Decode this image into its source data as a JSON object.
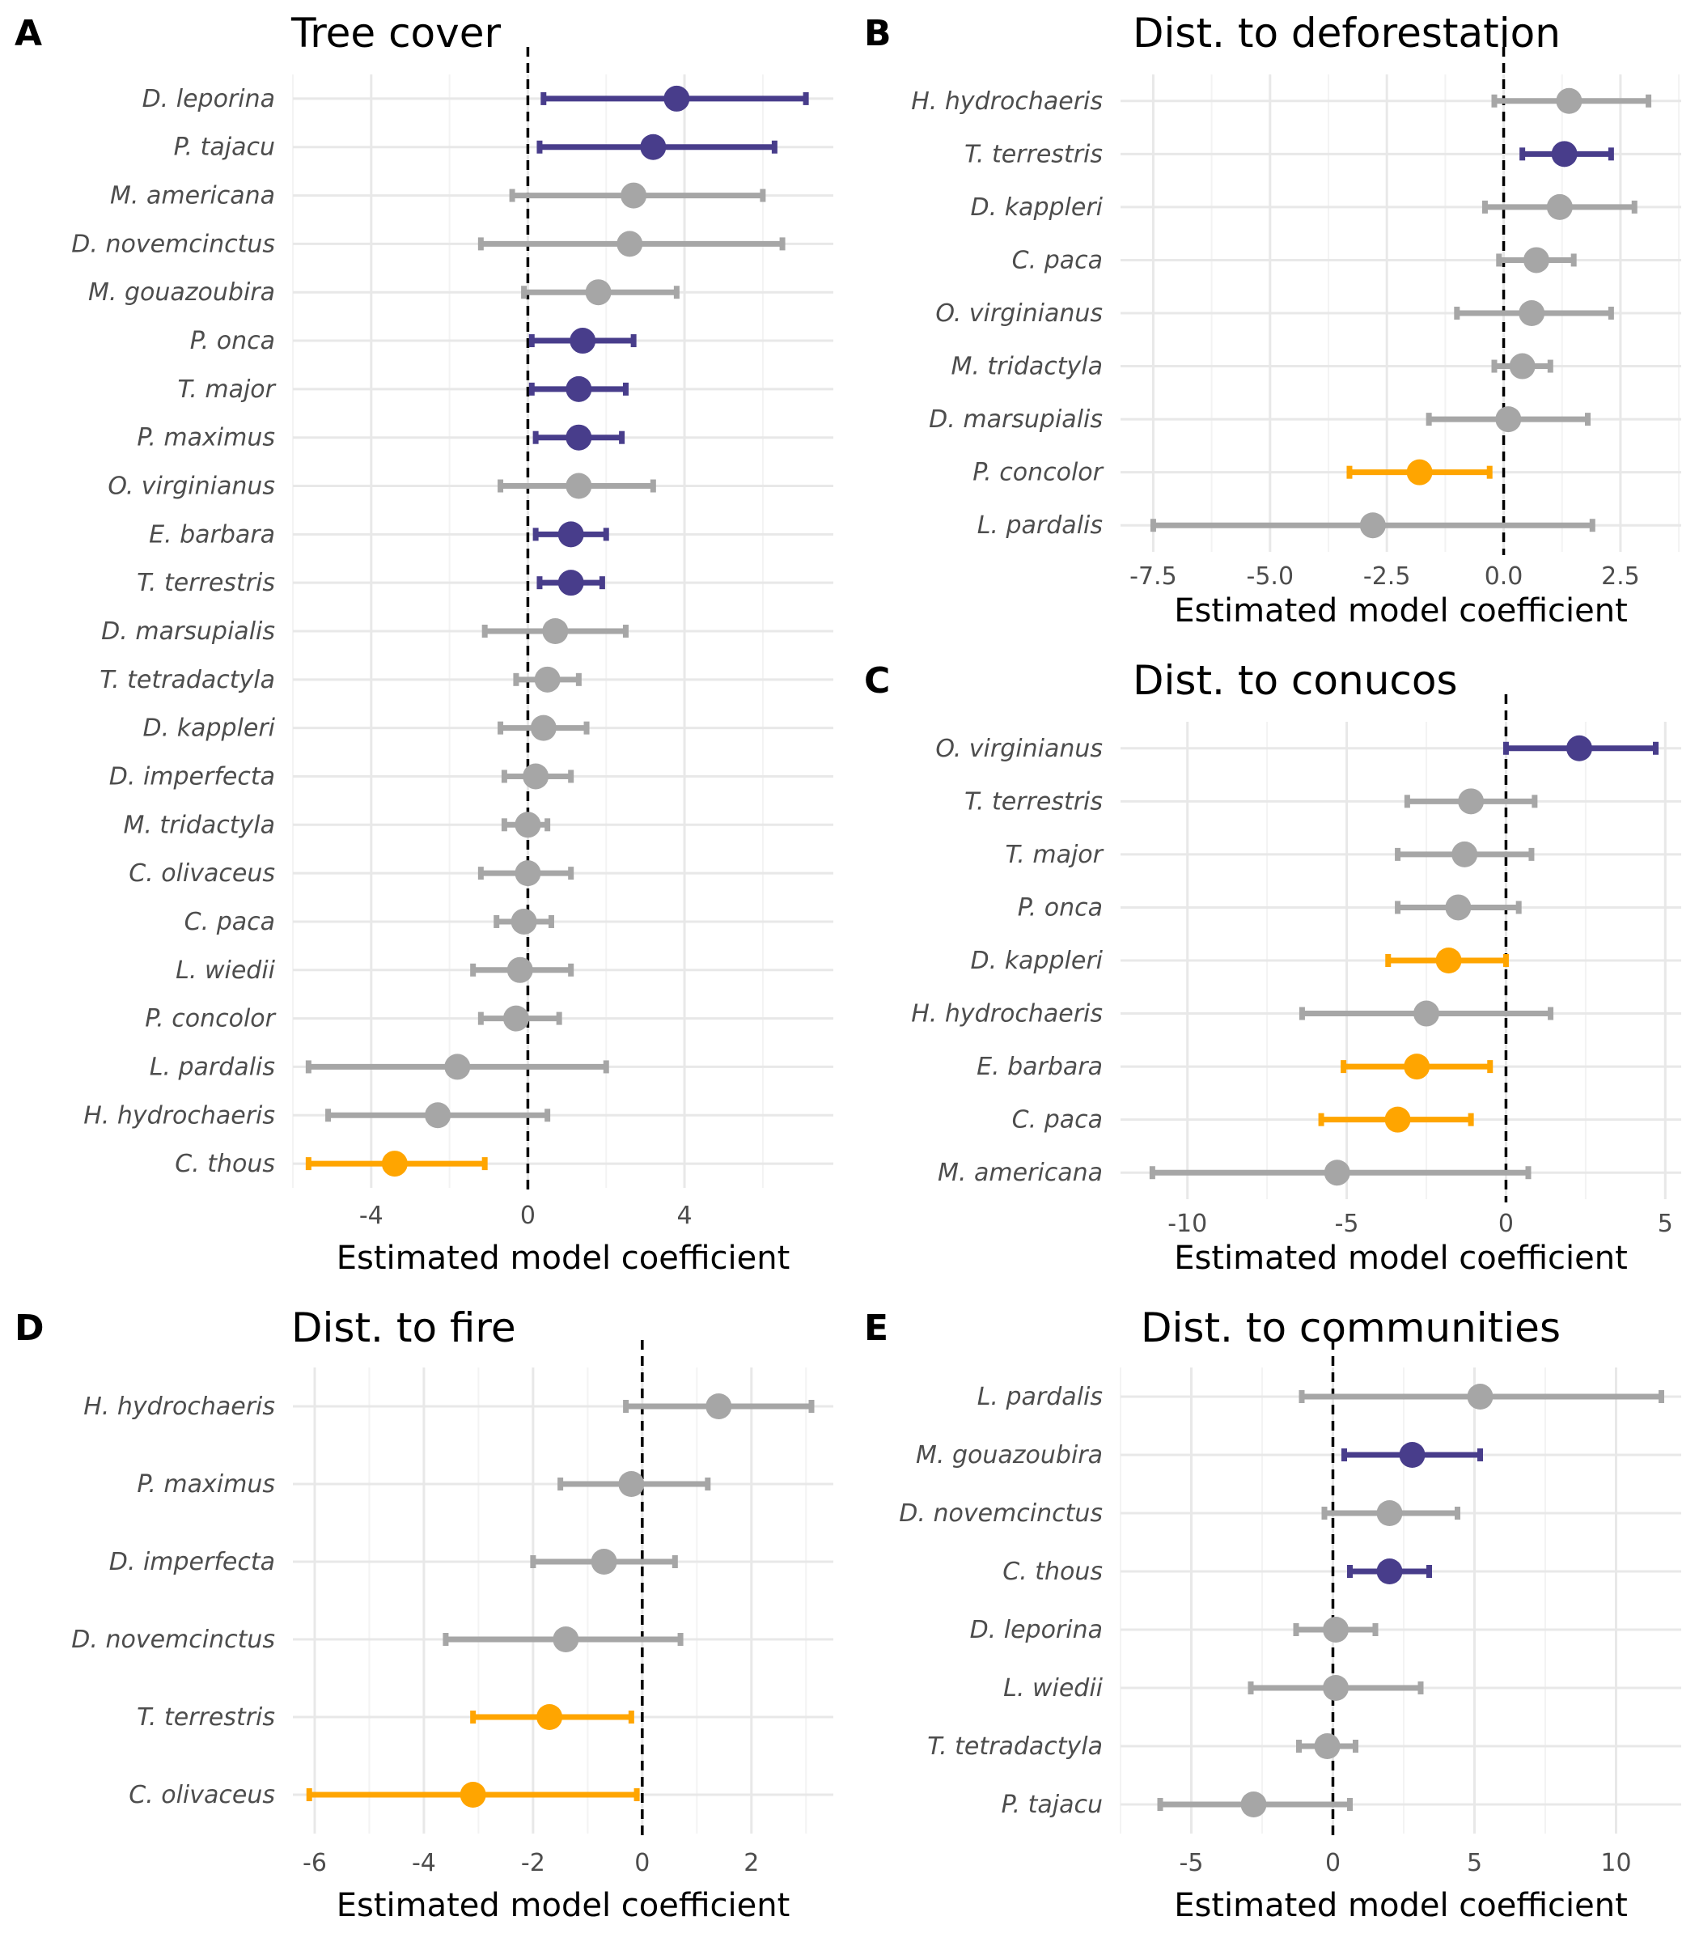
{
  "colors": {
    "positive": "#483D8B",
    "negative": "#FFA500",
    "neutral": "#A6A6A6"
  },
  "chart_data": [
    {
      "type": "scatter",
      "panel": "A",
      "title": "Tree cover",
      "xlabel": "Estimated model coefficient",
      "xlim": [
        -6,
        7.8
      ],
      "xticks": [
        -4,
        0,
        4
      ],
      "categories": [
        "D. leporina",
        "P. tajacu",
        "M. americana",
        "D. novemcinctus",
        "M. gouazoubira",
        "P. onca",
        "T. major",
        "P. maximus",
        "O. virginianus",
        "E. barbara",
        "T. terrestris",
        "D. marsupialis",
        "T. tetradactyla",
        "D. kappleri",
        "D. imperfecta",
        "M. tridactyla",
        "C. olivaceus",
        "C. paca",
        "L. wiedii",
        "P. concolor",
        "L. pardalis",
        "H. hydrochaeris",
        "C. thous"
      ],
      "estimate": [
        3.8,
        3.2,
        2.7,
        2.6,
        1.8,
        1.4,
        1.3,
        1.3,
        1.3,
        1.1,
        1.1,
        0.7,
        0.5,
        0.4,
        0.2,
        0.0,
        0.0,
        -0.1,
        -0.2,
        -0.3,
        -1.8,
        -2.3,
        -3.4
      ],
      "lower": [
        0.4,
        0.3,
        -0.4,
        -1.2,
        -0.1,
        0.1,
        0.1,
        0.2,
        -0.7,
        0.2,
        0.3,
        -1.1,
        -0.3,
        -0.7,
        -0.6,
        -0.6,
        -1.2,
        -0.8,
        -1.4,
        -1.2,
        -5.6,
        -5.1,
        -5.6
      ],
      "upper": [
        7.1,
        6.3,
        6.0,
        6.5,
        3.8,
        2.7,
        2.5,
        2.4,
        3.2,
        2.0,
        1.9,
        2.5,
        1.3,
        1.5,
        1.1,
        0.5,
        1.1,
        0.6,
        1.1,
        0.8,
        2.0,
        0.5,
        -1.1
      ],
      "effect": [
        "pos",
        "pos",
        "ns",
        "ns",
        "ns",
        "pos",
        "pos",
        "pos",
        "ns",
        "pos",
        "pos",
        "ns",
        "ns",
        "ns",
        "ns",
        "ns",
        "ns",
        "ns",
        "ns",
        "ns",
        "ns",
        "ns",
        "neg"
      ]
    },
    {
      "type": "scatter",
      "panel": "B",
      "title": "Dist. to deforestation",
      "xlabel": "Estimated model coefficient",
      "xlim": [
        -8.2,
        3.8
      ],
      "xticks": [
        -7.5,
        -5.0,
        -2.5,
        0.0,
        2.5
      ],
      "xticklabels": [
        "-7.5",
        "-5.0",
        "-2.5",
        "0.0",
        "2.5"
      ],
      "categories": [
        "H. hydrochaeris",
        "T. terrestris",
        "D. kappleri",
        "C. paca",
        "O. virginianus",
        "M. tridactyla",
        "D. marsupialis",
        "P. concolor",
        "L. pardalis"
      ],
      "estimate": [
        1.4,
        1.3,
        1.2,
        0.7,
        0.6,
        0.4,
        0.1,
        -1.8,
        -2.8
      ],
      "lower": [
        -0.2,
        0.4,
        -0.4,
        -0.1,
        -1.0,
        -0.2,
        -1.6,
        -3.3,
        -7.5
      ],
      "upper": [
        3.1,
        2.3,
        2.8,
        1.5,
        2.3,
        1.0,
        1.8,
        -0.3,
        1.9
      ],
      "effect": [
        "ns",
        "pos",
        "ns",
        "ns",
        "ns",
        "ns",
        "ns",
        "neg",
        "ns"
      ]
    },
    {
      "type": "scatter",
      "panel": "C",
      "title": "Dist. to conucos",
      "xlabel": "Estimated model coefficient",
      "xlim": [
        -12.1,
        5.5
      ],
      "xticks": [
        -10,
        -5,
        0,
        5
      ],
      "categories": [
        "O. virginianus",
        "T. terrestris",
        "T. major",
        "P. onca",
        "D. kappleri",
        "H. hydrochaeris",
        "E. barbara",
        "C. paca",
        "M. americana"
      ],
      "estimate": [
        2.3,
        -1.1,
        -1.3,
        -1.5,
        -1.8,
        -2.5,
        -2.8,
        -3.4,
        -5.3
      ],
      "lower": [
        0.0,
        -3.1,
        -3.4,
        -3.4,
        -3.7,
        -6.4,
        -5.1,
        -5.8,
        -11.1
      ],
      "upper": [
        4.7,
        0.9,
        0.8,
        0.4,
        0.0,
        1.4,
        -0.5,
        -1.1,
        0.7
      ],
      "effect": [
        "pos",
        "ns",
        "ns",
        "ns",
        "neg",
        "ns",
        "neg",
        "neg",
        "ns"
      ]
    },
    {
      "type": "scatter",
      "panel": "D",
      "title": "Dist. to fire",
      "xlabel": "Estimated model coefficient",
      "xlim": [
        -6.4,
        3.5
      ],
      "xticks": [
        -6,
        -4,
        -2,
        0,
        2
      ],
      "categories": [
        "H. hydrochaeris",
        "P. maximus",
        "D. imperfecta",
        "D. novemcinctus",
        "T. terrestris",
        "C. olivaceus"
      ],
      "estimate": [
        1.4,
        -0.2,
        -0.7,
        -1.4,
        -1.7,
        -3.1
      ],
      "lower": [
        -0.3,
        -1.5,
        -2.0,
        -3.6,
        -3.1,
        -6.1
      ],
      "upper": [
        3.1,
        1.2,
        0.6,
        0.7,
        -0.2,
        -0.1
      ],
      "effect": [
        "ns",
        "ns",
        "ns",
        "ns",
        "neg",
        "neg"
      ]
    },
    {
      "type": "scatter",
      "panel": "E",
      "title": "Dist. to communities",
      "xlabel": "Estimated model coefficient",
      "xlim": [
        -7.5,
        12.3
      ],
      "xticks": [
        -5,
        0,
        5,
        10
      ],
      "categories": [
        "L. pardalis",
        "M. gouazoubira",
        "D. novemcinctus",
        "C. thous",
        "D. leporina",
        "L. wiedii",
        "T. tetradactyla",
        "P. tajacu"
      ],
      "estimate": [
        5.2,
        2.8,
        2.0,
        2.0,
        0.1,
        0.1,
        -0.2,
        -2.8
      ],
      "lower": [
        -1.1,
        0.4,
        -0.3,
        0.6,
        -1.3,
        -2.9,
        -1.2,
        -6.1
      ],
      "upper": [
        11.6,
        5.2,
        4.4,
        3.4,
        1.5,
        3.1,
        0.8,
        0.6
      ],
      "effect": [
        "ns",
        "pos",
        "ns",
        "pos",
        "ns",
        "ns",
        "ns",
        "ns"
      ]
    }
  ]
}
